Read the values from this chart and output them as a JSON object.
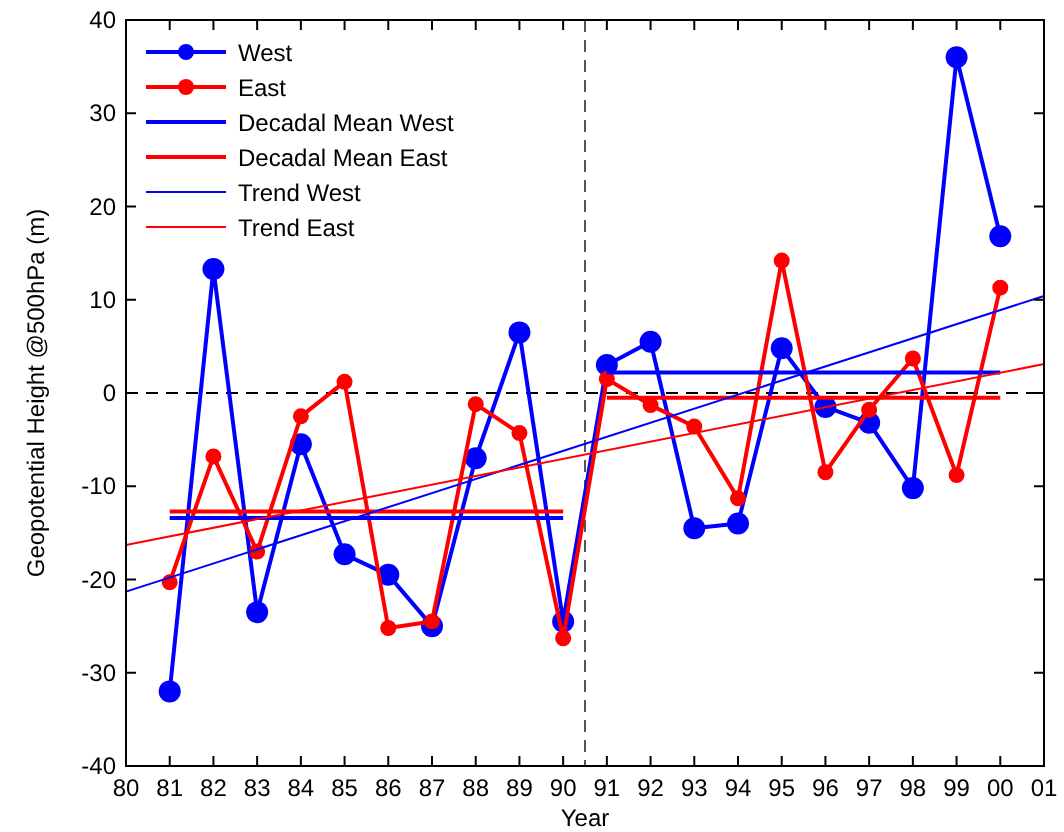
{
  "chart_data": {
    "type": "line",
    "xlabel": "Year",
    "ylabel": "Geopotential Height @500hPa (m)",
    "x": [
      1981,
      1982,
      1983,
      1984,
      1985,
      1986,
      1987,
      1988,
      1989,
      1990,
      1991,
      1992,
      1993,
      1994,
      1995,
      1996,
      1997,
      1998,
      1999,
      2000
    ],
    "series": [
      {
        "name": "West",
        "color": "#0000ff",
        "marker": "circle",
        "values": [
          -32,
          13.3,
          -23.5,
          -5.5,
          -17.3,
          -19.5,
          -25,
          -7,
          6.5,
          -24.5,
          3,
          5.5,
          -14.5,
          -14,
          4.8,
          -1.5,
          -3.2,
          -10.2,
          36,
          16.8
        ]
      },
      {
        "name": "East",
        "color": "#ff0000",
        "marker": "circle",
        "values": [
          -20.3,
          -6.8,
          -17,
          -2.5,
          1.2,
          -25.2,
          -24.5,
          -1.2,
          -4.3,
          -26.3,
          1.5,
          -1.3,
          -3.6,
          -11.3,
          14.2,
          -8.5,
          -1.8,
          3.7,
          -8.8,
          11.3
        ]
      },
      {
        "name": "Decadal Mean West",
        "color": "#0000ff",
        "marker": "none",
        "x": [
          1981,
          1990,
          null,
          1991,
          2000
        ],
        "values": [
          -13.4,
          -13.4,
          null,
          2.2,
          2.2
        ]
      },
      {
        "name": "Decadal Mean East",
        "color": "#ff0000",
        "marker": "none",
        "x": [
          1981,
          1990,
          null,
          1991,
          2000
        ],
        "values": [
          -12.7,
          -12.7,
          null,
          -0.5,
          -0.5
        ]
      },
      {
        "name": "Trend West",
        "color": "#0000ff",
        "marker": "none",
        "x": [
          1980,
          2001
        ],
        "values": [
          -21.3,
          10.4
        ]
      },
      {
        "name": "Trend East",
        "color": "#ff0000",
        "marker": "none",
        "x": [
          1980,
          2001
        ],
        "values": [
          -16.3,
          3.1
        ]
      }
    ],
    "xlim": [
      1980,
      2001
    ],
    "xticks": [
      {
        "value": 1980,
        "label": "80"
      },
      {
        "value": 1981,
        "label": "81"
      },
      {
        "value": 1982,
        "label": "82"
      },
      {
        "value": 1983,
        "label": "83"
      },
      {
        "value": 1984,
        "label": "84"
      },
      {
        "value": 1985,
        "label": "85"
      },
      {
        "value": 1986,
        "label": "86"
      },
      {
        "value": 1987,
        "label": "87"
      },
      {
        "value": 1988,
        "label": "88"
      },
      {
        "value": 1989,
        "label": "89"
      },
      {
        "value": 1990,
        "label": "90"
      },
      {
        "value": 1991,
        "label": "91"
      },
      {
        "value": 1992,
        "label": "92"
      },
      {
        "value": 1993,
        "label": "93"
      },
      {
        "value": 1994,
        "label": "94"
      },
      {
        "value": 1995,
        "label": "95"
      },
      {
        "value": 1996,
        "label": "96"
      },
      {
        "value": 1997,
        "label": "97"
      },
      {
        "value": 1998,
        "label": "98"
      },
      {
        "value": 1999,
        "label": "99"
      },
      {
        "value": 2000,
        "label": "00"
      },
      {
        "value": 2001,
        "label": "01"
      }
    ],
    "ylim": [
      -40,
      40
    ],
    "yticks": [
      -40,
      -30,
      -20,
      -10,
      0,
      10,
      20,
      30,
      40
    ],
    "ref_lines": [
      {
        "axis": "y",
        "value": 0,
        "color": "#000000",
        "line_style": "dashed"
      },
      {
        "axis": "x",
        "value": 1990.5,
        "color": "#555555",
        "line_style": "dashed"
      }
    ],
    "legend": "top left",
    "grid": false,
    "line_style": "solid"
  }
}
